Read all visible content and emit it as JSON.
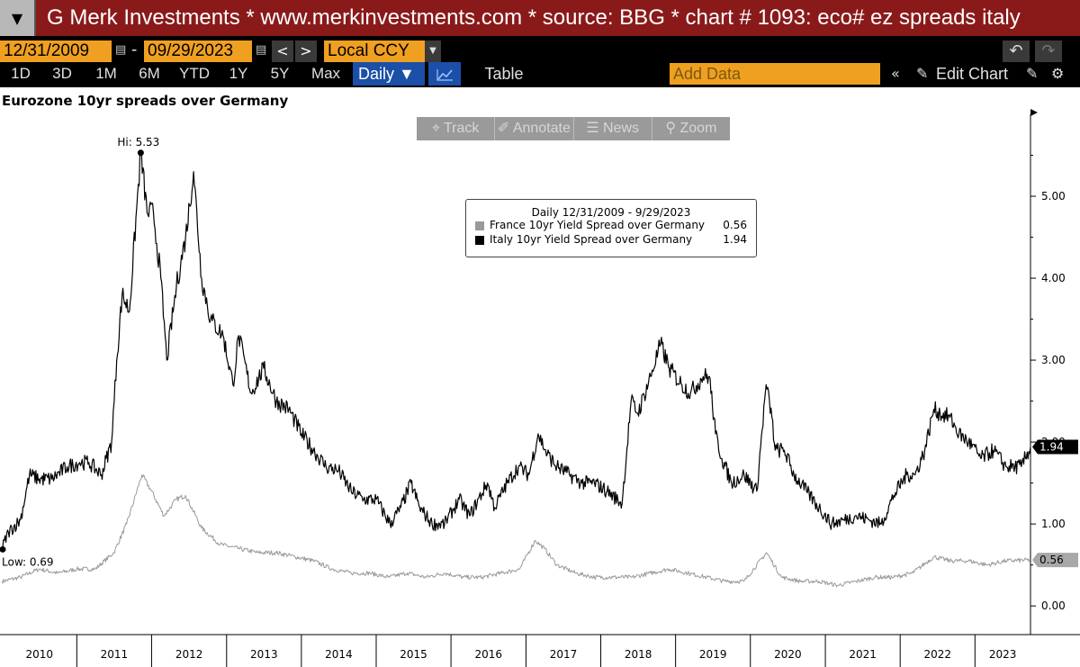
{
  "header": {
    "menu_icon": "down-triangle-icon",
    "title": "G Merk Investments * www.merkinvestments.com * source: BBG * chart # 1093: eco# ez spreads italy"
  },
  "controls": {
    "start_date": "12/31/2009",
    "end_date": "09/29/2023",
    "date_separator": "-",
    "prev_label": "<",
    "next_label": ">",
    "currency": "Local CCY",
    "periods": [
      "1D",
      "3D",
      "1M",
      "6M",
      "YTD",
      "1Y",
      "5Y",
      "Max"
    ],
    "frequency": "Daily ▼",
    "table_label": "Table",
    "add_data_placeholder": "Add Data",
    "edit_chart_label": "Edit Chart",
    "collapse_icon": "double-chevron-left-icon",
    "pencil_icon": "pencil-icon",
    "gear_icon": "gear-icon",
    "undo_icon": "undo-icon",
    "redo_icon": "redo-icon"
  },
  "toolbar": {
    "track": "Track",
    "annotate": "Annotate",
    "news": "News",
    "zoom": "Zoom"
  },
  "chart_data": {
    "type": "line",
    "title": "Eurozone 10yr spreads over Germany",
    "legend": {
      "header": "Daily 12/31/2009 - 9/29/2023",
      "placement": "top-center"
    },
    "x_ticks": [
      "2010",
      "2011",
      "2012",
      "2013",
      "2014",
      "2015",
      "2016",
      "2017",
      "2018",
      "2019",
      "2020",
      "2021",
      "2022",
      "2023"
    ],
    "y_ticks": [
      "0.00",
      "1.00",
      "2.00",
      "3.00",
      "4.00",
      "5.00"
    ],
    "ylim": [
      -0.35,
      6.0
    ],
    "xlim": [
      "2009-12-31",
      "2023-09-29"
    ],
    "annotations": {
      "high_label": "Hi: 5.53",
      "high_value": 5.53,
      "high_date": "2011-11-09",
      "low_label": "Low: 0.69",
      "low_value": 0.69,
      "low_date": "2009-12-31"
    },
    "series": [
      {
        "name": "France 10yr Yield Spread over Germany",
        "last_value": "0.56",
        "color": "#999999",
        "x": [
          "2010-01-01",
          "2010-04-01",
          "2010-07-01",
          "2010-10-01",
          "2011-01-01",
          "2011-04-01",
          "2011-07-01",
          "2011-09-01",
          "2011-11-15",
          "2012-01-01",
          "2012-03-01",
          "2012-05-01",
          "2012-06-15",
          "2012-09-01",
          "2012-12-01",
          "2013-03-01",
          "2013-06-01",
          "2013-09-01",
          "2013-12-01",
          "2014-03-01",
          "2014-06-01",
          "2014-09-01",
          "2014-12-01",
          "2015-03-01",
          "2015-06-01",
          "2015-09-01",
          "2015-12-01",
          "2016-03-01",
          "2016-06-01",
          "2016-09-01",
          "2016-12-01",
          "2017-02-15",
          "2017-04-01",
          "2017-06-01",
          "2017-09-01",
          "2017-12-01",
          "2018-03-01",
          "2018-06-01",
          "2018-09-01",
          "2018-12-01",
          "2019-03-01",
          "2019-06-01",
          "2019-09-01",
          "2019-12-01",
          "2020-03-20",
          "2020-06-01",
          "2020-09-01",
          "2020-12-01",
          "2021-03-01",
          "2021-06-01",
          "2021-09-01",
          "2021-12-01",
          "2022-03-01",
          "2022-06-15",
          "2022-09-01",
          "2022-12-01",
          "2023-03-01",
          "2023-06-01",
          "2023-09-29"
        ],
        "y": [
          0.3,
          0.35,
          0.45,
          0.4,
          0.45,
          0.45,
          0.65,
          1.0,
          1.6,
          1.4,
          1.1,
          1.3,
          1.35,
          0.95,
          0.75,
          0.7,
          0.65,
          0.65,
          0.6,
          0.55,
          0.45,
          0.4,
          0.4,
          0.35,
          0.4,
          0.35,
          0.4,
          0.35,
          0.35,
          0.4,
          0.45,
          0.8,
          0.7,
          0.5,
          0.4,
          0.35,
          0.35,
          0.35,
          0.4,
          0.45,
          0.4,
          0.35,
          0.3,
          0.3,
          0.65,
          0.35,
          0.3,
          0.3,
          0.25,
          0.3,
          0.35,
          0.35,
          0.4,
          0.6,
          0.55,
          0.55,
          0.5,
          0.55,
          0.56
        ]
      },
      {
        "name": "Italy 10yr Yield Spread over Germany",
        "last_value": "1.94",
        "color": "#000000",
        "x": [
          "2009-12-31",
          "2010-02-01",
          "2010-04-01",
          "2010-05-15",
          "2010-07-01",
          "2010-09-01",
          "2010-11-15",
          "2011-01-15",
          "2011-03-01",
          "2011-05-01",
          "2011-06-20",
          "2011-07-15",
          "2011-08-10",
          "2011-09-15",
          "2011-11-09",
          "2011-12-10",
          "2012-01-10",
          "2012-02-15",
          "2012-03-15",
          "2012-05-01",
          "2012-06-15",
          "2012-07-24",
          "2012-09-01",
          "2012-10-15",
          "2012-12-15",
          "2013-02-01",
          "2013-03-01",
          "2013-05-01",
          "2013-07-01",
          "2013-09-01",
          "2013-11-01",
          "2014-01-01",
          "2014-03-01",
          "2014-05-01",
          "2014-07-01",
          "2014-09-01",
          "2014-11-01",
          "2015-01-01",
          "2015-03-10",
          "2015-05-01",
          "2015-06-20",
          "2015-08-01",
          "2015-10-01",
          "2015-12-01",
          "2016-02-10",
          "2016-04-01",
          "2016-06-27",
          "2016-08-01",
          "2016-10-01",
          "2016-11-25",
          "2017-01-15",
          "2017-03-01",
          "2017-04-15",
          "2017-06-01",
          "2017-08-01",
          "2017-10-01",
          "2017-12-01",
          "2018-02-01",
          "2018-04-15",
          "2018-05-29",
          "2018-07-01",
          "2018-09-01",
          "2018-10-20",
          "2018-12-01",
          "2019-02-01",
          "2019-03-15",
          "2019-05-15",
          "2019-06-15",
          "2019-07-15",
          "2019-08-15",
          "2019-10-01",
          "2019-12-01",
          "2020-02-01",
          "2020-03-18",
          "2020-04-15",
          "2020-05-01",
          "2020-06-15",
          "2020-08-01",
          "2020-10-01",
          "2020-12-01",
          "2021-02-01",
          "2021-04-01",
          "2021-06-01",
          "2021-08-01",
          "2021-10-01",
          "2021-12-01",
          "2022-02-01",
          "2022-03-15",
          "2022-05-01",
          "2022-06-14",
          "2022-07-15",
          "2022-09-01",
          "2022-10-15",
          "2022-12-01",
          "2023-02-01",
          "2023-04-01",
          "2023-06-01",
          "2023-07-15",
          "2023-08-15",
          "2023-09-29"
        ],
        "y": [
          0.69,
          0.9,
          1.05,
          1.6,
          1.55,
          1.55,
          1.7,
          1.75,
          1.75,
          1.6,
          2.0,
          3.0,
          3.8,
          3.6,
          5.53,
          4.8,
          4.8,
          4.0,
          3.0,
          3.9,
          4.5,
          5.3,
          4.0,
          3.5,
          3.3,
          2.7,
          3.3,
          2.6,
          2.9,
          2.5,
          2.4,
          2.1,
          1.9,
          1.7,
          1.65,
          1.4,
          1.3,
          1.3,
          1.0,
          1.2,
          1.5,
          1.2,
          1.0,
          1.0,
          1.3,
          1.1,
          1.5,
          1.2,
          1.5,
          1.7,
          1.6,
          2.1,
          1.85,
          1.7,
          1.6,
          1.5,
          1.5,
          1.4,
          1.25,
          2.5,
          2.35,
          2.8,
          3.2,
          2.9,
          2.7,
          2.6,
          2.8,
          2.8,
          2.1,
          1.8,
          1.5,
          1.6,
          1.4,
          2.7,
          2.3,
          1.9,
          1.9,
          1.6,
          1.4,
          1.2,
          1.0,
          1.05,
          1.1,
          1.05,
          1.0,
          1.35,
          1.6,
          1.6,
          1.9,
          2.4,
          2.35,
          2.3,
          2.1,
          2.0,
          1.8,
          1.9,
          1.7,
          1.7,
          1.7,
          1.94
        ]
      }
    ]
  }
}
